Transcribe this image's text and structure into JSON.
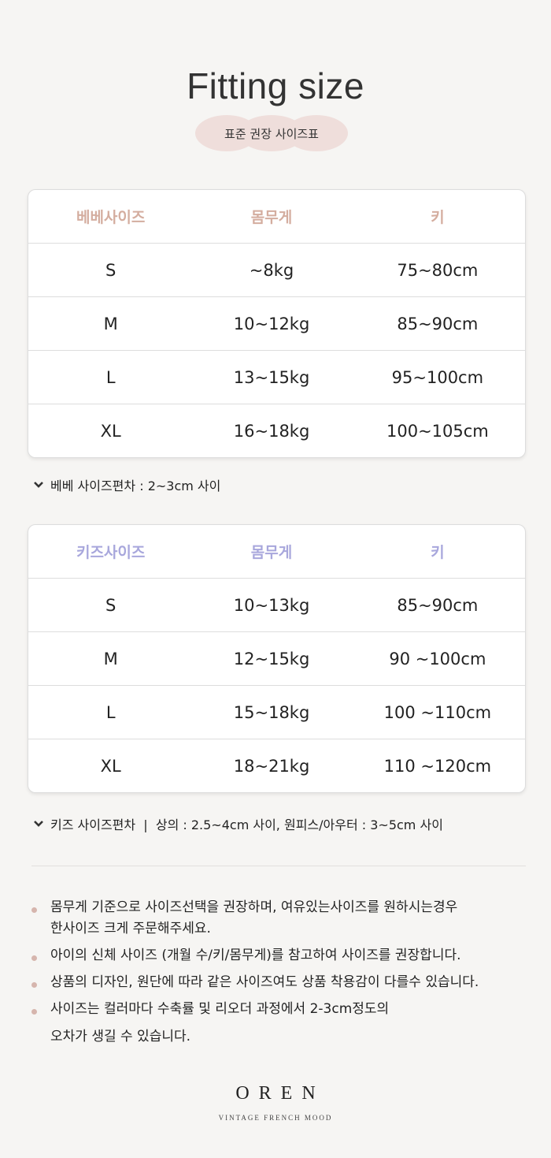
{
  "title": "Fitting size",
  "subtitle": "표준 권장 사이즈표",
  "colors": {
    "baby_header": "#d4ad9f",
    "kids_header": "#a8a7dc",
    "badge": "#efdedb",
    "bullet": "#d6b5ad"
  },
  "baby": {
    "headers": [
      "베베사이즈",
      "몸무게",
      "키"
    ],
    "rows": [
      [
        "S",
        "~8kg",
        "75~80cm"
      ],
      [
        "M",
        "10~12kg",
        "85~90cm"
      ],
      [
        "L",
        "13~15kg",
        "95~100cm"
      ],
      [
        "XL",
        "16~18kg",
        "100~105cm"
      ]
    ],
    "note": "베베 사이즈편차 : 2~3cm 사이"
  },
  "kids": {
    "headers": [
      "키즈사이즈",
      "몸무게",
      "키"
    ],
    "rows": [
      [
        "S",
        "10~13kg",
        "85~90cm"
      ],
      [
        "M",
        "12~15kg",
        "90 ~100cm"
      ],
      [
        "L",
        "15~18kg",
        "100 ~110cm"
      ],
      [
        "XL",
        "18~21kg",
        "110 ~120cm"
      ]
    ],
    "note": "키즈 사이즈편차  |  상의 : 2.5~4cm 사이, 원피스/아우터 : 3~5cm 사이"
  },
  "bullets": [
    [
      "몸무게 기준으로 사이즈선택을 권장하며, 여유있는사이즈를 원하시는경우",
      "한사이즈 크게 주문해주세요."
    ],
    [
      "아이의 신체 사이즈 (개월 수/키/몸무게)를 참고하여 사이즈를 권장합니다."
    ],
    [
      "상품의 디자인, 원단에 따라 같은 사이즈여도 상품 착용감이 다를수 있습니다."
    ],
    [
      "사이즈는 컬러마다 수축률 및 리오더 과정에서 2-3cm정도의",
      "오차가 생길 수 있습니다."
    ]
  ],
  "brand": {
    "name": "OREN",
    "tagline": "VINTAGE FRENCH MOOD"
  }
}
